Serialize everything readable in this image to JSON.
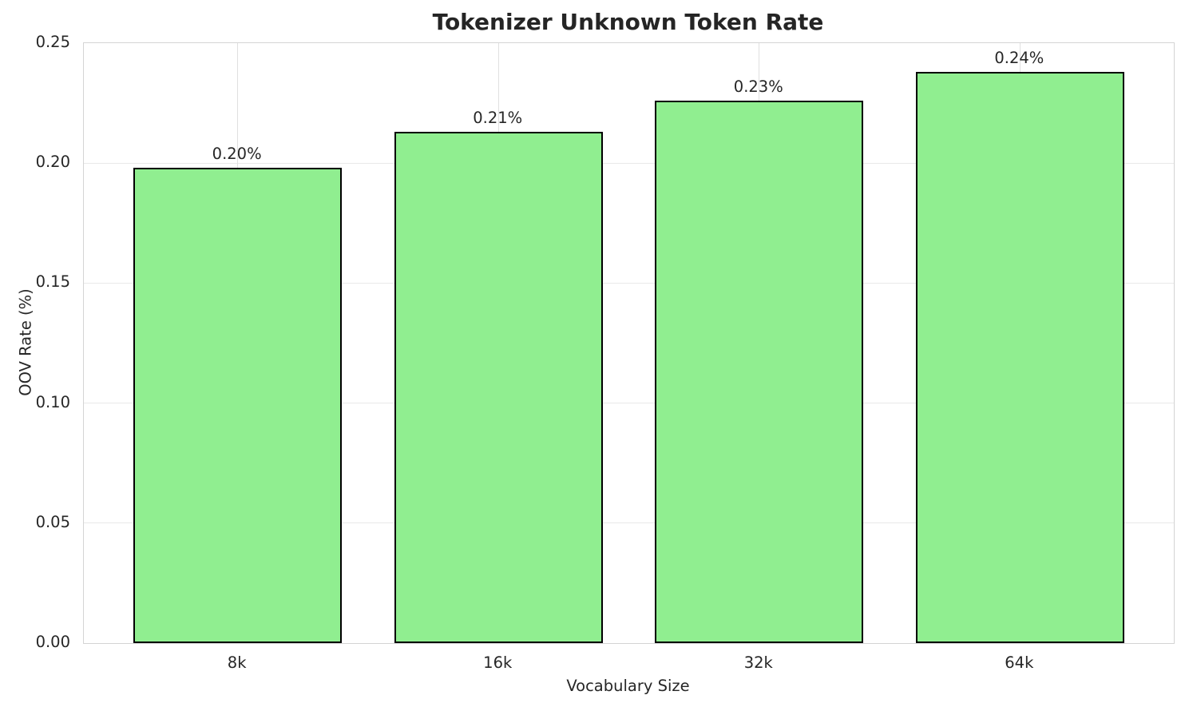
{
  "chart_data": {
    "type": "bar",
    "title": "Tokenizer Unknown Token Rate",
    "xlabel": "Vocabulary Size",
    "ylabel": "OOV Rate (%)",
    "categories": [
      "8k",
      "16k",
      "32k",
      "64k"
    ],
    "values": [
      0.198,
      0.213,
      0.226,
      0.238
    ],
    "bar_labels": [
      "0.20%",
      "0.21%",
      "0.23%",
      "0.24%"
    ],
    "ylim": [
      0.0,
      0.25
    ],
    "yticks": [
      0.0,
      0.05,
      0.1,
      0.15,
      0.2,
      0.25
    ],
    "ytick_labels": [
      "0.00",
      "0.05",
      "0.10",
      "0.15",
      "0.20",
      "0.25"
    ],
    "grid": true,
    "legend": "none",
    "bar_color": "#90EE90",
    "bar_edge_color": "#000000",
    "grid_color": "#e9e9e9",
    "spine_color": "#d4d4d4",
    "text_color": "#262626",
    "background_color": "#ffffff"
  }
}
